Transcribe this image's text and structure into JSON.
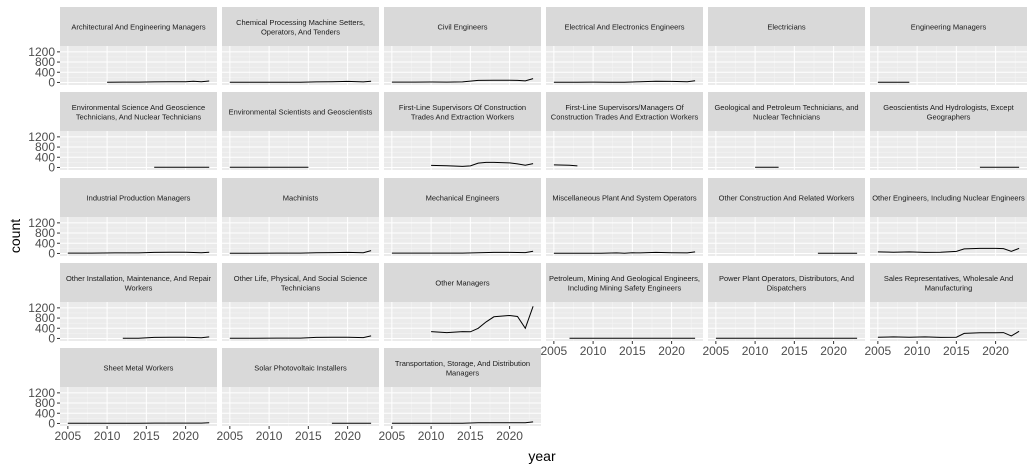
{
  "chart_data": {
    "type": "line",
    "facet_type": "small-multiples",
    "xlabel": "year",
    "ylabel": "count",
    "xlim": [
      2004,
      2024
    ],
    "ylim": [
      -100,
      1430
    ],
    "x_ticks": [
      2005,
      2010,
      2015,
      2020
    ],
    "y_ticks": [
      0,
      400,
      800,
      1200
    ],
    "grid": true,
    "colors": {
      "panel_bg": "#ebebeb",
      "strip_bg": "#d9d9d9",
      "grid_major": "#ffffff",
      "grid_minor": "#f5f5f5",
      "line": "#000000",
      "tick_text": "#4d4d4d"
    },
    "facets": [
      {
        "title": "Architectural And Engineering Managers",
        "x": [
          2010,
          2012,
          2014,
          2016,
          2018,
          2020,
          2021,
          2022,
          2023
        ],
        "y": [
          10,
          12,
          14,
          22,
          25,
          30,
          45,
          30,
          55
        ]
      },
      {
        "title": "Chemical Processing Machine Setters, Operators, And Tenders",
        "x": [
          2005,
          2008,
          2011,
          2014,
          2016,
          2018,
          2020,
          2022,
          2023
        ],
        "y": [
          8,
          8,
          10,
          10,
          20,
          25,
          40,
          20,
          45
        ]
      },
      {
        "title": "Civil Engineers",
        "x": [
          2005,
          2008,
          2010,
          2012,
          2014,
          2016,
          2018,
          2020,
          2021,
          2022,
          2023
        ],
        "y": [
          15,
          15,
          18,
          15,
          20,
          80,
          90,
          90,
          80,
          60,
          150
        ]
      },
      {
        "title": "Electrical And Electronics Engineers",
        "x": [
          2005,
          2008,
          2010,
          2012,
          2014,
          2016,
          2018,
          2020,
          2022,
          2023
        ],
        "y": [
          10,
          10,
          12,
          8,
          10,
          30,
          45,
          40,
          30,
          70
        ]
      },
      {
        "title": "Electricians",
        "x": [],
        "y": []
      },
      {
        "title": "Engineering Managers",
        "x": [
          2005,
          2007,
          2009
        ],
        "y": [
          10,
          10,
          10
        ]
      },
      {
        "title": "Environmental Science And Geoscience Technicians, And Nuclear Technicians",
        "x": [
          2016,
          2018,
          2020,
          2022,
          2023
        ],
        "y": [
          8,
          8,
          8,
          8,
          10
        ]
      },
      {
        "title": "Environmental Scientists and Geoscientists",
        "x": [
          2005,
          2007,
          2009,
          2011,
          2013,
          2015
        ],
        "y": [
          8,
          8,
          8,
          8,
          8,
          8
        ]
      },
      {
        "title": "First-Line Supervisors Of Construction Trades And Extraction Workers",
        "x": [
          2010,
          2012,
          2014,
          2015,
          2016,
          2017,
          2018,
          2020,
          2021,
          2022,
          2023
        ],
        "y": [
          80,
          70,
          40,
          60,
          170,
          200,
          200,
          180,
          140,
          90,
          150
        ]
      },
      {
        "title": "First-Line Supervisors/Managers Of Construction Trades And Extraction Workers",
        "x": [
          2005,
          2007,
          2008
        ],
        "y": [
          100,
          90,
          60
        ]
      },
      {
        "title": "Geological and Petroleum Technicians, and Nuclear Technicians",
        "x": [
          2010,
          2011,
          2012,
          2013
        ],
        "y": [
          8,
          8,
          8,
          8
        ]
      },
      {
        "title": "Geoscientists And Hydrologists, Except Geographers",
        "x": [
          2018,
          2020,
          2022,
          2023
        ],
        "y": [
          8,
          8,
          8,
          8
        ]
      },
      {
        "title": "Industrial Production Managers",
        "x": [
          2005,
          2008,
          2011,
          2014,
          2016,
          2018,
          2020,
          2022,
          2023
        ],
        "y": [
          15,
          15,
          20,
          20,
          40,
          45,
          45,
          30,
          50
        ]
      },
      {
        "title": "Machinists",
        "x": [
          2005,
          2008,
          2011,
          2014,
          2016,
          2018,
          2020,
          2022,
          2023
        ],
        "y": [
          10,
          10,
          12,
          15,
          30,
          35,
          40,
          30,
          110
        ]
      },
      {
        "title": "Mechanical Engineers",
        "x": [
          2005,
          2008,
          2011,
          2014,
          2016,
          2018,
          2020,
          2022,
          2023
        ],
        "y": [
          12,
          12,
          15,
          15,
          30,
          40,
          40,
          35,
          90
        ]
      },
      {
        "title": "Miscellaneous Plant And System Operators",
        "x": [
          2005,
          2008,
          2011,
          2013,
          2014,
          2015,
          2016,
          2018,
          2020,
          2022,
          2023
        ],
        "y": [
          8,
          8,
          8,
          20,
          5,
          25,
          20,
          40,
          30,
          20,
          60
        ]
      },
      {
        "title": "Other Construction And Related Workers",
        "x": [
          2018,
          2020,
          2022,
          2023
        ],
        "y": [
          10,
          10,
          10,
          10
        ]
      },
      {
        "title": "Other Engineers, Including Nuclear Engineers",
        "x": [
          2005,
          2007,
          2009,
          2011,
          2013,
          2015,
          2016,
          2018,
          2020,
          2021,
          2022,
          2023
        ],
        "y": [
          60,
          50,
          60,
          40,
          50,
          80,
          180,
          200,
          200,
          190,
          80,
          200
        ]
      },
      {
        "title": "Other Installation, Maintenance, And Repair Workers",
        "x": [
          2012,
          2014,
          2016,
          2018,
          2020,
          2022,
          2023
        ],
        "y": [
          8,
          10,
          40,
          45,
          45,
          30,
          60
        ]
      },
      {
        "title": "Other Life, Physical, And Social Science Technicians",
        "x": [
          2005,
          2008,
          2011,
          2014,
          2016,
          2018,
          2020,
          2022,
          2023
        ],
        "y": [
          10,
          10,
          12,
          15,
          40,
          50,
          50,
          35,
          100
        ]
      },
      {
        "title": "Other Managers",
        "x": [
          2010,
          2012,
          2014,
          2015,
          2016,
          2017,
          2018,
          2020,
          2021,
          2022,
          2023
        ],
        "y": [
          270,
          230,
          270,
          260,
          400,
          650,
          850,
          900,
          860,
          400,
          1260
        ]
      },
      {
        "title": "Petroleum, Mining And Geological Engineers, Including Mining Safety Engineers",
        "x": [
          2007,
          2010,
          2013,
          2016,
          2019,
          2022,
          2023
        ],
        "y": [
          8,
          8,
          8,
          8,
          8,
          8,
          8
        ]
      },
      {
        "title": "Power Plant Operators, Distributors, And Dispatchers",
        "x": [
          2005,
          2008,
          2011,
          2014,
          2017,
          2020,
          2023
        ],
        "y": [
          8,
          8,
          8,
          8,
          8,
          8,
          8
        ]
      },
      {
        "title": "Sales Representatives, Wholesale And Manufacturing",
        "x": [
          2005,
          2007,
          2009,
          2011,
          2013,
          2015,
          2016,
          2018,
          2020,
          2021,
          2022,
          2023
        ],
        "y": [
          50,
          60,
          50,
          60,
          40,
          50,
          200,
          220,
          220,
          230,
          100,
          280
        ]
      },
      {
        "title": "Sheet Metal Workers",
        "x": [
          2005,
          2008,
          2011,
          2014,
          2016,
          2018,
          2020,
          2022,
          2023
        ],
        "y": [
          8,
          8,
          8,
          10,
          15,
          15,
          15,
          12,
          25
        ]
      },
      {
        "title": "Solar Photovoltaic Installers",
        "x": [
          2018,
          2020,
          2022,
          2023
        ],
        "y": [
          8,
          8,
          8,
          8
        ]
      },
      {
        "title": "Transportation, Storage, And Distribution Managers",
        "x": [
          2005,
          2008,
          2011,
          2014,
          2016,
          2018,
          2020,
          2022,
          2023
        ],
        "y": [
          8,
          8,
          10,
          10,
          30,
          30,
          30,
          30,
          60
        ]
      }
    ]
  }
}
